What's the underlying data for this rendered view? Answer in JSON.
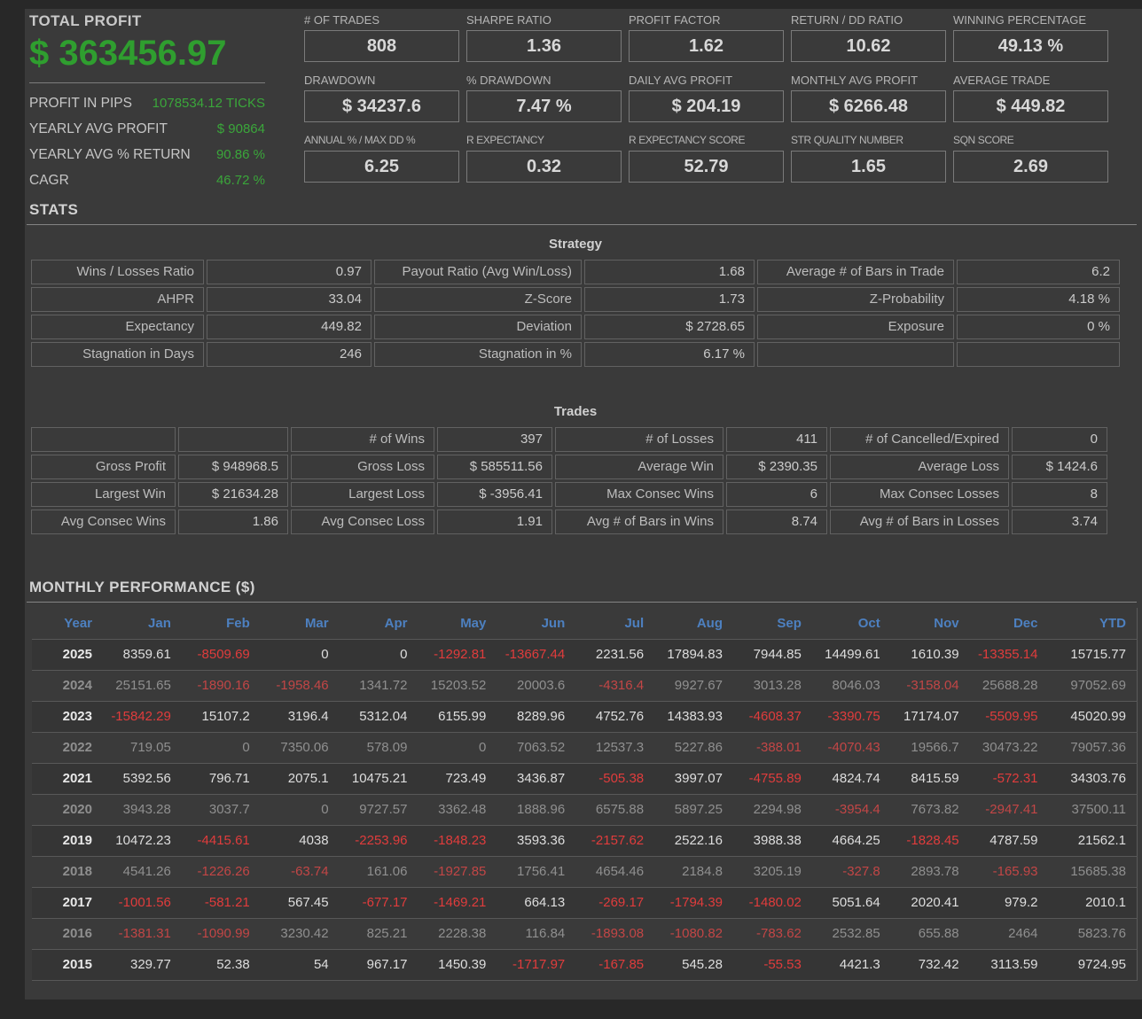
{
  "colors": {
    "accent_green": "#2f9e2f",
    "negative_red": "#e03c3c",
    "header_blue": "#4d80c0"
  },
  "summary": {
    "title": "TOTAL PROFIT",
    "total": "$ 363456.97",
    "rows": [
      {
        "label": "PROFIT IN PIPS",
        "value": "1078534.12 TICKS"
      },
      {
        "label": "YEARLY AVG PROFIT",
        "value": "$ 90864"
      },
      {
        "label": "YEARLY AVG % RETURN",
        "value": "90.86 %"
      },
      {
        "label": "CAGR",
        "value": "46.72 %"
      }
    ]
  },
  "metrics": [
    {
      "label": "# OF TRADES",
      "value": "808"
    },
    {
      "label": "SHARPE RATIO",
      "value": "1.36"
    },
    {
      "label": "PROFIT FACTOR",
      "value": "1.62"
    },
    {
      "label": "RETURN / DD RATIO",
      "value": "10.62"
    },
    {
      "label": "WINNING PERCENTAGE",
      "value": "49.13 %"
    },
    {
      "label": "DRAWDOWN",
      "value": "$ 34237.6"
    },
    {
      "label": "% DRAWDOWN",
      "value": "7.47 %"
    },
    {
      "label": "DAILY AVG PROFIT",
      "value": "$ 204.19"
    },
    {
      "label": "MONTHLY AVG PROFIT",
      "value": "$ 6266.48"
    },
    {
      "label": "AVERAGE TRADE",
      "value": "$ 449.82"
    },
    {
      "label": "ANNUAL % / MAX DD %",
      "value": "6.25"
    },
    {
      "label": "R EXPECTANCY",
      "value": "0.32"
    },
    {
      "label": "R EXPECTANCY SCORE",
      "value": "52.79"
    },
    {
      "label": "STR QUALITY NUMBER",
      "value": "1.65"
    },
    {
      "label": "SQN SCORE",
      "value": "2.69"
    }
  ],
  "stats": {
    "section_title": "STATS",
    "strategy": {
      "title": "Strategy",
      "rows": [
        [
          "Wins / Losses Ratio",
          "0.97",
          "Payout Ratio (Avg Win/Loss)",
          "1.68",
          "Average # of Bars in Trade",
          "6.2"
        ],
        [
          "AHPR",
          "33.04",
          "Z-Score",
          "1.73",
          "Z-Probability",
          "4.18 %"
        ],
        [
          "Expectancy",
          "449.82",
          "Deviation",
          "$ 2728.65",
          "Exposure",
          "0 %"
        ],
        [
          "Stagnation in Days",
          "246",
          "Stagnation in %",
          "6.17 %",
          "",
          ""
        ]
      ]
    },
    "trades": {
      "title": "Trades",
      "rows": [
        [
          "",
          "",
          "# of Wins",
          "397",
          "# of Losses",
          "411",
          "# of Cancelled/Expired",
          "0"
        ],
        [
          "Gross Profit",
          "$ 948968.5",
          "Gross Loss",
          "$ 585511.56",
          "Average Win",
          "$ 2390.35",
          "Average Loss",
          "$ 1424.6"
        ],
        [
          "Largest Win",
          "$ 21634.28",
          "Largest Loss",
          "$ -3956.41",
          "Max Consec Wins",
          "6",
          "Max Consec Losses",
          "8"
        ],
        [
          "Avg Consec Wins",
          "1.86",
          "Avg Consec Loss",
          "1.91",
          "Avg # of Bars in Wins",
          "8.74",
          "Avg # of Bars in Losses",
          "3.74"
        ]
      ]
    }
  },
  "monthly": {
    "section_title": "MONTHLY PERFORMANCE ($)",
    "columns": [
      "Year",
      "Jan",
      "Feb",
      "Mar",
      "Apr",
      "May",
      "Jun",
      "Jul",
      "Aug",
      "Sep",
      "Oct",
      "Nov",
      "Dec",
      "YTD"
    ],
    "rows": [
      {
        "year": "2025",
        "values": [
          "8359.61",
          "-8509.69",
          "0",
          "0",
          "-1292.81",
          "-13667.44",
          "2231.56",
          "17894.83",
          "7944.85",
          "14499.61",
          "1610.39",
          "-13355.14",
          "15715.77"
        ]
      },
      {
        "year": "2024",
        "values": [
          "25151.65",
          "-1890.16",
          "-1958.46",
          "1341.72",
          "15203.52",
          "20003.6",
          "-4316.4",
          "9927.67",
          "3013.28",
          "8046.03",
          "-3158.04",
          "25688.28",
          "97052.69"
        ]
      },
      {
        "year": "2023",
        "values": [
          "-15842.29",
          "15107.2",
          "3196.4",
          "5312.04",
          "6155.99",
          "8289.96",
          "4752.76",
          "14383.93",
          "-4608.37",
          "-3390.75",
          "17174.07",
          "-5509.95",
          "45020.99"
        ]
      },
      {
        "year": "2022",
        "values": [
          "719.05",
          "0",
          "7350.06",
          "578.09",
          "0",
          "7063.52",
          "12537.3",
          "5227.86",
          "-388.01",
          "-4070.43",
          "19566.7",
          "30473.22",
          "79057.36"
        ]
      },
      {
        "year": "2021",
        "values": [
          "5392.56",
          "796.71",
          "2075.1",
          "10475.21",
          "723.49",
          "3436.87",
          "-505.38",
          "3997.07",
          "-4755.89",
          "4824.74",
          "8415.59",
          "-572.31",
          "34303.76"
        ]
      },
      {
        "year": "2020",
        "values": [
          "3943.28",
          "3037.7",
          "0",
          "9727.57",
          "3362.48",
          "1888.96",
          "6575.88",
          "5897.25",
          "2294.98",
          "-3954.4",
          "7673.82",
          "-2947.41",
          "37500.11"
        ]
      },
      {
        "year": "2019",
        "values": [
          "10472.23",
          "-4415.61",
          "4038",
          "-2253.96",
          "-1848.23",
          "3593.36",
          "-2157.62",
          "2522.16",
          "3988.38",
          "4664.25",
          "-1828.45",
          "4787.59",
          "21562.1"
        ]
      },
      {
        "year": "2018",
        "values": [
          "4541.26",
          "-1226.26",
          "-63.74",
          "161.06",
          "-1927.85",
          "1756.41",
          "4654.46",
          "2184.8",
          "3205.19",
          "-327.8",
          "2893.78",
          "-165.93",
          "15685.38"
        ]
      },
      {
        "year": "2017",
        "values": [
          "-1001.56",
          "-581.21",
          "567.45",
          "-677.17",
          "-1469.21",
          "664.13",
          "-269.17",
          "-1794.39",
          "-1480.02",
          "5051.64",
          "2020.41",
          "979.2",
          "2010.1"
        ]
      },
      {
        "year": "2016",
        "values": [
          "-1381.31",
          "-1090.99",
          "3230.42",
          "825.21",
          "2228.38",
          "116.84",
          "-1893.08",
          "-1080.82",
          "-783.62",
          "2532.85",
          "655.88",
          "2464",
          "5823.76"
        ]
      },
      {
        "year": "2015",
        "values": [
          "329.77",
          "52.38",
          "54",
          "967.17",
          "1450.39",
          "-1717.97",
          "-167.85",
          "545.28",
          "-55.53",
          "4421.3",
          "732.42",
          "3113.59",
          "9724.95"
        ]
      }
    ]
  }
}
